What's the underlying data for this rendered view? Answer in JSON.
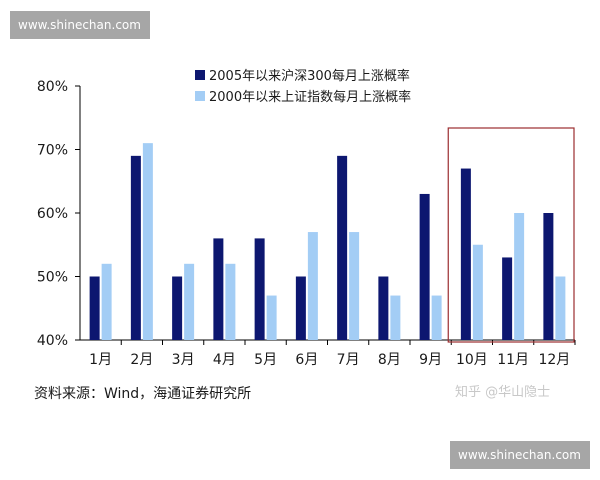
{
  "watermark": {
    "top": "www.shinechan.com",
    "bottom": "www.shinechan.com"
  },
  "source": "资料来源：Wind，海通证券研究所",
  "credit": "知乎 @华山隐士",
  "colors": {
    "series_a": "#0d1770",
    "series_b": "#a3cdf5",
    "highlight_box": "#9b2d30",
    "axis": "#000000"
  },
  "chart_data": {
    "type": "bar",
    "categories": [
      "1月",
      "2月",
      "3月",
      "4月",
      "5月",
      "6月",
      "7月",
      "8月",
      "9月",
      "10月",
      "11月",
      "12月"
    ],
    "series": [
      {
        "name": "2005年以来沪深300每月上涨概率",
        "values": [
          50,
          69,
          50,
          56,
          56,
          50,
          69,
          50,
          63,
          67,
          53,
          60
        ]
      },
      {
        "name": "2000年以来上证指数每月上涨概率",
        "values": [
          52,
          71,
          52,
          52,
          47,
          57,
          57,
          47,
          47,
          55,
          60,
          50
        ]
      }
    ],
    "yticks": [
      "40%",
      "50%",
      "60%",
      "70%",
      "80%"
    ],
    "ylim": [
      40,
      80
    ],
    "highlight": [
      "10月",
      "12月"
    ],
    "legend_position": "top-center"
  }
}
